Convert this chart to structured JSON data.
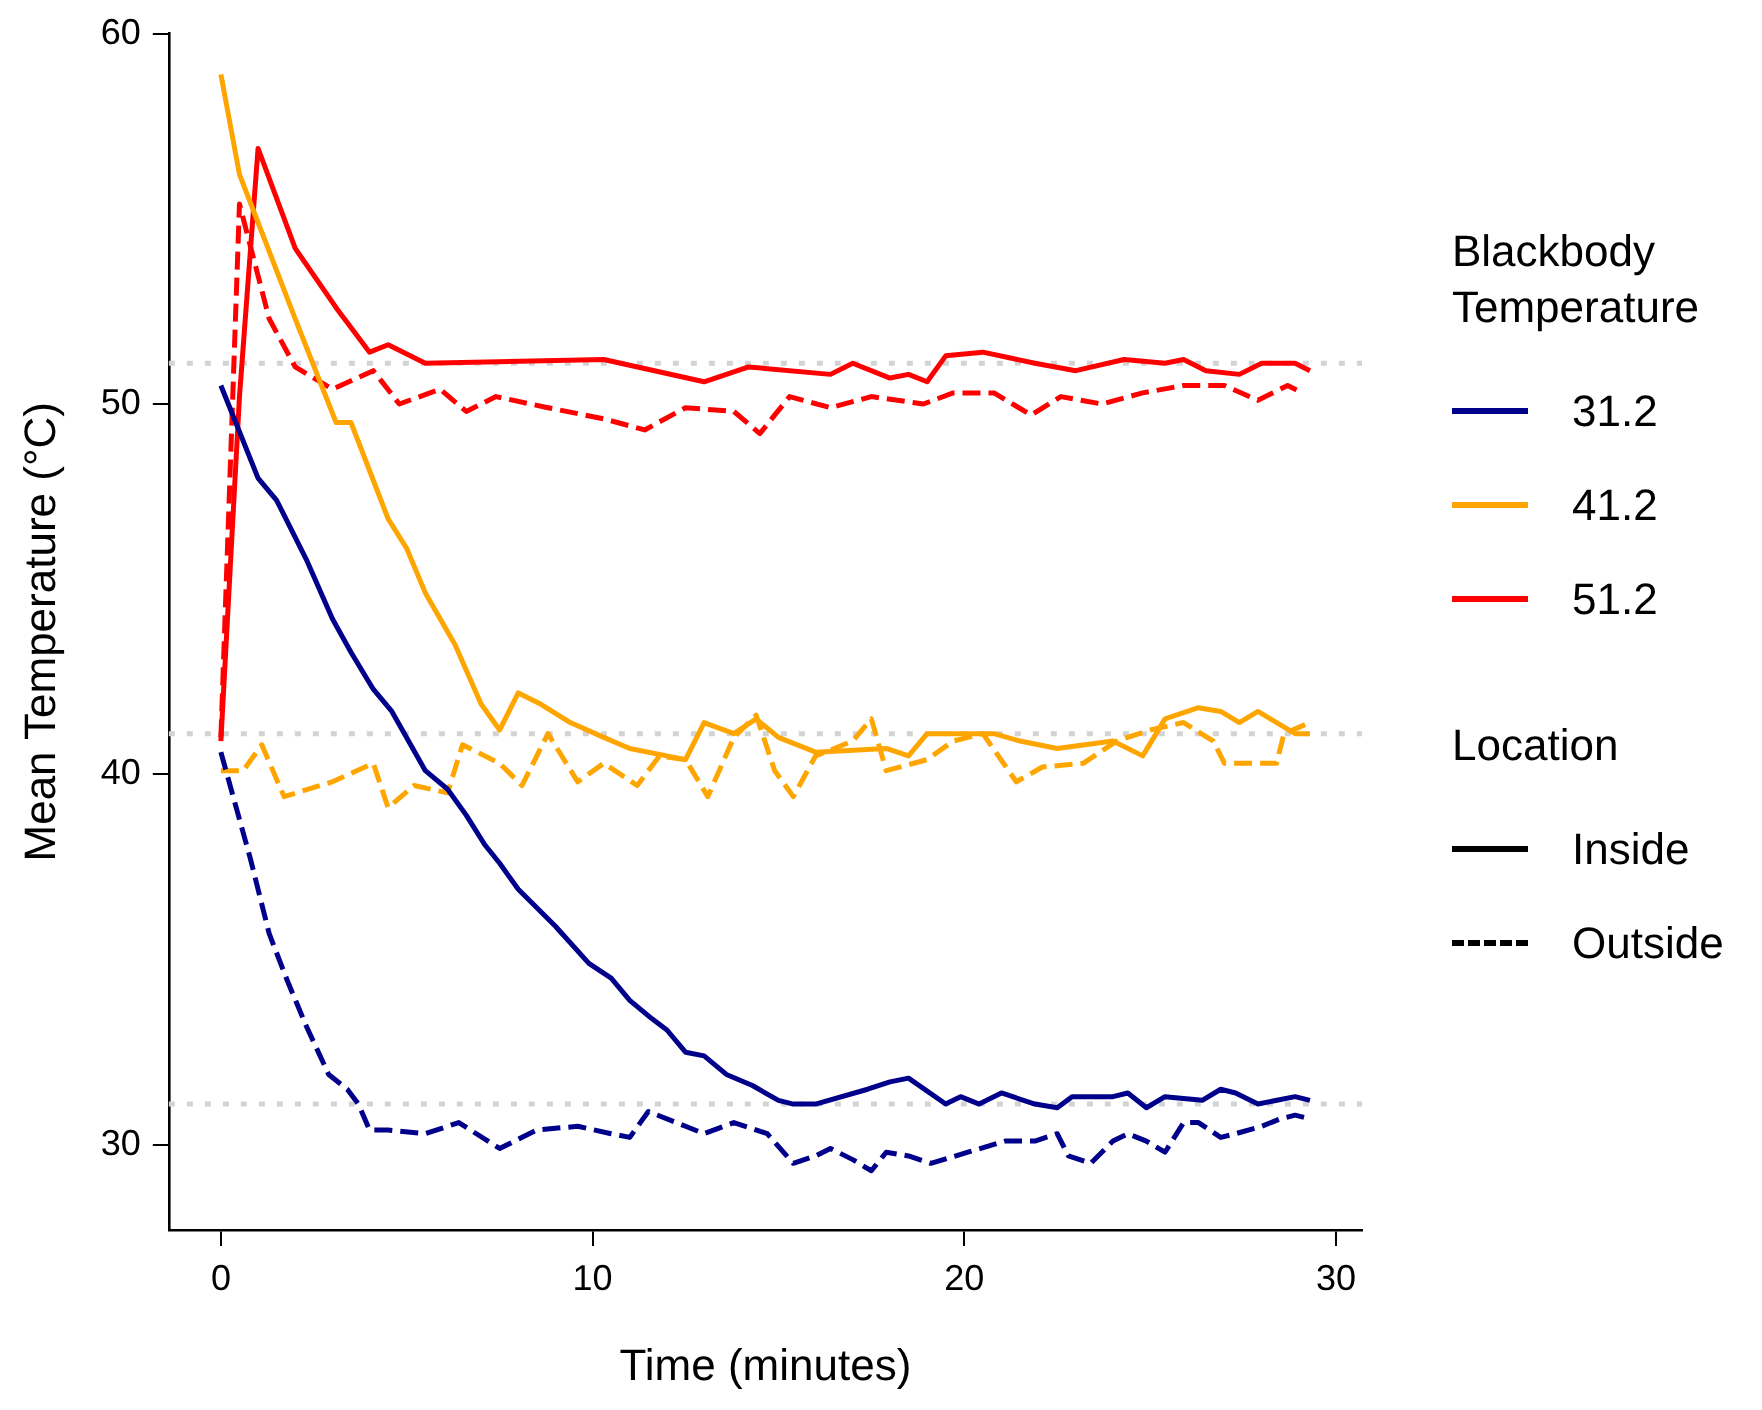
{
  "chart_data": {
    "type": "line",
    "xlabel": "Time (minutes)",
    "ylabel": "Mean Temperature (°C)",
    "legend_title": "Blackbody Temperature",
    "xlim": [
      -1.4,
      30.7
    ],
    "xticks": [
      0,
      10,
      20,
      30
    ],
    "ylim": [
      27.7,
      60
    ],
    "yticks": [
      30,
      40,
      50,
      60
    ],
    "grid": false,
    "legend": "right",
    "marker": "none",
    "series": [
      {
        "name": "31.2",
        "color": "#00008b",
        "line_style": "solid",
        "x": [
          0,
          0.4,
          1,
          1.5,
          2.3,
          3,
          3.5,
          4.1,
          4.6,
          5.5,
          6.1,
          6.6,
          7.1,
          7.5,
          8,
          9,
          9.9,
          10.5,
          11,
          11.6,
          12,
          12.5,
          13,
          13.6,
          14.3,
          15,
          15.4,
          16,
          17.4,
          18,
          18.5,
          19.5,
          19.9,
          20.4,
          21,
          21.9,
          22.5,
          22.9,
          24,
          24.4,
          24.9,
          25.4,
          26.4,
          26.9,
          27.3,
          27.9,
          28.9,
          29.3
        ],
        "values": [
          50.5,
          49.5,
          48,
          47.4,
          45.8,
          44.2,
          43.3,
          42.3,
          41.7,
          40.1,
          39.6,
          38.9,
          38.1,
          37.6,
          36.9,
          35.9,
          34.9,
          34.5,
          33.9,
          33.4,
          33.1,
          32.5,
          32.4,
          31.9,
          31.6,
          31.2,
          31.1,
          31.1,
          31.5,
          31.7,
          31.8,
          31.1,
          31.3,
          31.1,
          31.4,
          31.1,
          31,
          31.3,
          31.3,
          31.4,
          31,
          31.3,
          31.2,
          31.5,
          31.4,
          31.1,
          31.3,
          31.2
        ]
      },
      {
        "color": "#00008b",
        "line_style": "dashed",
        "x": [
          0,
          0.8,
          1.3,
          1.8,
          2.3,
          2.9,
          3.4,
          3.7,
          4,
          4.5,
          5.5,
          6.4,
          7.5,
          8.5,
          9.6,
          10.5,
          11,
          11.5,
          12.5,
          13,
          13.8,
          14.7,
          15.4,
          16,
          16.4,
          17,
          17.5,
          17.9,
          18.5,
          19.1,
          20.1,
          21.1,
          21.9,
          22.5,
          22.8,
          23.4,
          24,
          24.4,
          24.9,
          25.4,
          25.9,
          26.3,
          26.9,
          27.3,
          28,
          28.5,
          28.9,
          29.3
        ],
        "values": [
          40.6,
          37.7,
          35.7,
          34.4,
          33.2,
          31.9,
          31.5,
          31.1,
          30.4,
          30.4,
          30.3,
          30.6,
          29.9,
          30.4,
          30.5,
          30.3,
          30.2,
          30.9,
          30.5,
          30.3,
          30.6,
          30.3,
          29.5,
          29.7,
          29.9,
          29.6,
          29.3,
          29.8,
          29.7,
          29.5,
          29.8,
          30.1,
          30.1,
          30.3,
          29.7,
          29.5,
          30.1,
          30.3,
          30.1,
          29.8,
          30.6,
          30.6,
          30.2,
          30.3,
          30.5,
          30.7,
          30.8,
          30.7
        ]
      },
      {
        "name": "41.2",
        "color": "#ffa500",
        "line_style": "solid",
        "x": [
          0,
          0.5,
          2,
          3.1,
          3.5,
          4.5,
          5,
          5.5,
          6.3,
          7,
          7.5,
          8,
          8.6,
          9.4,
          10.3,
          11,
          12.5,
          13,
          13.8,
          14.4,
          15,
          16,
          17.9,
          18.5,
          19,
          19.9,
          20.8,
          21.5,
          22.5,
          24,
          24.8,
          25.4,
          26.3,
          26.9,
          27.4,
          27.9,
          28.9,
          29.3
        ],
        "values": [
          58.9,
          56.2,
          52.3,
          49.5,
          49.5,
          46.9,
          46.1,
          44.9,
          43.5,
          41.9,
          41.2,
          42.2,
          41.9,
          41.4,
          41,
          40.7,
          40.4,
          41.4,
          41.1,
          41.5,
          41,
          40.6,
          40.7,
          40.5,
          41.1,
          41.1,
          41.1,
          40.9,
          40.7,
          40.9,
          40.5,
          41.5,
          41.8,
          41.7,
          41.4,
          41.7,
          41.1,
          41.1
        ]
      },
      {
        "color": "#ffa500",
        "line_style": "dashed",
        "x": [
          0,
          0.6,
          1.1,
          1.7,
          3,
          4.1,
          4.5,
          5.2,
          6.1,
          6.5,
          7.5,
          8.1,
          8.8,
          9.6,
          10.3,
          11.2,
          11.8,
          12.5,
          13.1,
          13.8,
          14.4,
          14.9,
          15.4,
          16,
          17,
          17.5,
          17.9,
          19,
          19.7,
          20.5,
          21.4,
          22.1,
          23.2,
          24.1,
          25,
          25.9,
          26.7,
          27,
          27.6,
          28.4,
          28.6,
          29.3
        ],
        "values": [
          40.1,
          40.1,
          40.8,
          39.4,
          39.8,
          40.3,
          39.1,
          39.7,
          39.5,
          40.8,
          40.3,
          39.7,
          41.1,
          39.8,
          40.3,
          39.7,
          40.5,
          40.4,
          39.4,
          41,
          41.6,
          40.1,
          39.4,
          40.5,
          40.9,
          41.5,
          40.1,
          40.4,
          40.9,
          41.1,
          39.8,
          40.2,
          40.3,
          40.9,
          41.2,
          41.4,
          40.9,
          40.3,
          40.3,
          40.3,
          41.1,
          41.4
        ]
      },
      {
        "name": "51.2",
        "color": "#ff0000",
        "line_style": "solid",
        "x": [
          0,
          0.5,
          1,
          2,
          3.1,
          4,
          4.5,
          5.5,
          10.3,
          13,
          14.2,
          16.4,
          17,
          18,
          18.5,
          19,
          19.5,
          20.5,
          21.9,
          23,
          24.3,
          25.4,
          25.9,
          26.5,
          27.4,
          28,
          28.9,
          29.3
        ],
        "values": [
          40.9,
          50.2,
          56.9,
          54.2,
          52.6,
          51.4,
          51.6,
          51.1,
          51.2,
          50.6,
          51,
          50.8,
          51.1,
          50.7,
          50.8,
          50.6,
          51.3,
          51.4,
          51.1,
          50.9,
          51.2,
          51.1,
          51.2,
          50.9,
          50.8,
          51.1,
          51.1,
          50.9
        ]
      },
      {
        "color": "#ff0000",
        "line_style": "dashed",
        "x": [
          0,
          0.5,
          1.3,
          2,
          3,
          4.1,
          4.8,
          5.9,
          6.6,
          7.4,
          8.8,
          10.3,
          11.4,
          12.5,
          13.8,
          14.5,
          15.3,
          16.4,
          17.5,
          18.9,
          19.7,
          20.8,
          21.8,
          22.6,
          23.7,
          24.8,
          25.9,
          27,
          27.9,
          28.7,
          29.1
        ],
        "values": [
          41,
          55.4,
          52.3,
          51,
          50.4,
          50.9,
          50,
          50.4,
          49.8,
          50.2,
          49.9,
          49.6,
          49.3,
          49.9,
          49.8,
          49.2,
          50.2,
          49.9,
          50.2,
          50,
          50.3,
          50.3,
          49.7,
          50.2,
          50,
          50.3,
          50.5,
          50.5,
          50.1,
          50.5,
          50.3
        ]
      }
    ],
    "ref_lines": [
      {
        "axis": "y",
        "value": 51.1,
        "color": "#d3d3d3",
        "line_style": "dotted"
      },
      {
        "axis": "y",
        "value": 41.1,
        "color": "#d3d3d3",
        "line_style": "dotted"
      },
      {
        "axis": "y",
        "value": 31.1,
        "color": "#d3d3d3",
        "line_style": "dotted"
      }
    ],
    "annotations": [
      "Location",
      "Inside",
      "Outside"
    ]
  }
}
